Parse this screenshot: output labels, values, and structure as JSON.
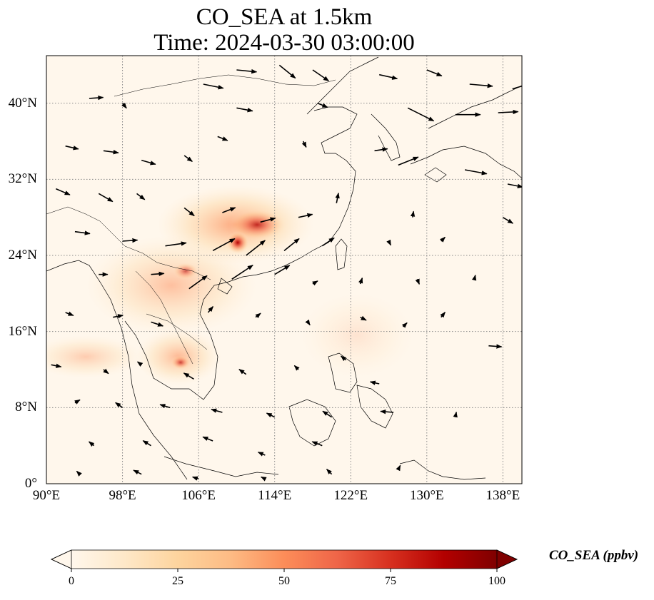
{
  "title": {
    "line1": "CO_SEA at 1.5km",
    "line2": "Time: 2024-03-30 03:00:00"
  },
  "map": {
    "extent": {
      "lon": [
        90,
        140
      ],
      "lat": [
        0,
        45
      ]
    },
    "lon_ticks": [
      {
        "value": 90,
        "label": "90°E"
      },
      {
        "value": 98,
        "label": "98°E"
      },
      {
        "value": 106,
        "label": "106°E"
      },
      {
        "value": 114,
        "label": "114°E"
      },
      {
        "value": 122,
        "label": "122°E"
      },
      {
        "value": 130,
        "label": "130°E"
      },
      {
        "value": 138,
        "label": "138°E"
      }
    ],
    "lat_ticks": [
      {
        "value": 0,
        "label": "0°"
      },
      {
        "value": 8,
        "label": "8°N"
      },
      {
        "value": 16,
        "label": "16°N"
      },
      {
        "value": 24,
        "label": "24°N"
      },
      {
        "value": 32,
        "label": "32°N"
      },
      {
        "value": 40,
        "label": "40°N"
      }
    ],
    "gridlines": "dotted",
    "features": [
      "coastlines",
      "country-borders",
      "wind-vectors",
      "co-concentration-field"
    ]
  },
  "colorbar": {
    "label": "CO_SEA (ppbv)",
    "min": 0,
    "max": 100,
    "extend": "both",
    "colormap": "OrRd",
    "ticks": [
      {
        "value": 0,
        "label": "0"
      },
      {
        "value": 25,
        "label": "25"
      },
      {
        "value": 50,
        "label": "50"
      },
      {
        "value": 75,
        "label": "75"
      },
      {
        "value": 100,
        "label": "100"
      }
    ],
    "colors": [
      "#fff7ec",
      "#fee8c8",
      "#fdd49e",
      "#fdbb84",
      "#fc8d59",
      "#ef6548",
      "#d7301f",
      "#b30000",
      "#7f0000"
    ]
  },
  "concentration_hotspots": [
    {
      "lon": 111.5,
      "lat": 27.5,
      "value": 45
    },
    {
      "lon": 110.0,
      "lat": 25.5,
      "value": 90
    },
    {
      "lon": 104.5,
      "lat": 22.0,
      "value": 30
    },
    {
      "lon": 103.5,
      "lat": 12.5,
      "value": 35
    },
    {
      "lon": 106.0,
      "lat": 18.0,
      "value": 18
    },
    {
      "lon": 98.0,
      "lat": 13.5,
      "value": 12
    },
    {
      "lon": 94.0,
      "lat": 13.5,
      "value": 10
    }
  ],
  "wind_vectors": [
    {
      "lon": 94.5,
      "lat": 40.5,
      "u": 1.4,
      "v": 0.1
    },
    {
      "lon": 98.0,
      "lat": 40.0,
      "u": 0.4,
      "v": -0.5
    },
    {
      "lon": 106.5,
      "lat": 42.0,
      "u": 2.0,
      "v": -0.4
    },
    {
      "lon": 110.0,
      "lat": 43.5,
      "u": 2.0,
      "v": -0.2
    },
    {
      "lon": 114.5,
      "lat": 44.0,
      "u": 1.6,
      "v": -1.3
    },
    {
      "lon": 118.0,
      "lat": 43.5,
      "u": 1.6,
      "v": -1.1
    },
    {
      "lon": 125.0,
      "lat": 43.0,
      "u": 1.8,
      "v": -0.4
    },
    {
      "lon": 130.0,
      "lat": 43.5,
      "u": 1.5,
      "v": -0.6
    },
    {
      "lon": 134.5,
      "lat": 42.0,
      "u": 2.3,
      "v": -0.2
    },
    {
      "lon": 139.0,
      "lat": 41.5,
      "u": 2.0,
      "v": 0.6
    },
    {
      "lon": 110.0,
      "lat": 39.5,
      "u": 1.6,
      "v": -0.3
    },
    {
      "lon": 118.5,
      "lat": 40.0,
      "u": 1.0,
      "v": -0.4
    },
    {
      "lon": 128.0,
      "lat": 39.5,
      "u": 2.6,
      "v": -1.3
    },
    {
      "lon": 133.0,
      "lat": 38.8,
      "u": 2.5,
      "v": 0.0
    },
    {
      "lon": 137.5,
      "lat": 39.0,
      "u": 2.0,
      "v": 0.1
    },
    {
      "lon": 92.0,
      "lat": 35.5,
      "u": 1.3,
      "v": -0.3
    },
    {
      "lon": 96.0,
      "lat": 35.0,
      "u": 1.5,
      "v": -0.2
    },
    {
      "lon": 100.0,
      "lat": 34.0,
      "u": 1.4,
      "v": -0.4
    },
    {
      "lon": 104.5,
      "lat": 34.5,
      "u": 0.8,
      "v": -0.6
    },
    {
      "lon": 108.0,
      "lat": 36.5,
      "u": 1.0,
      "v": -0.4
    },
    {
      "lon": 117.0,
      "lat": 36.0,
      "u": 0.3,
      "v": -0.6
    },
    {
      "lon": 124.5,
      "lat": 35.0,
      "u": 1.3,
      "v": 0.2
    },
    {
      "lon": 127.0,
      "lat": 33.5,
      "u": 2.0,
      "v": 0.8
    },
    {
      "lon": 134.0,
      "lat": 33.0,
      "u": 2.2,
      "v": -0.4
    },
    {
      "lon": 138.5,
      "lat": 31.5,
      "u": 1.5,
      "v": -0.3
    },
    {
      "lon": 91.0,
      "lat": 31.0,
      "u": 1.4,
      "v": -0.6
    },
    {
      "lon": 95.5,
      "lat": 30.5,
      "u": 1.4,
      "v": -0.8
    },
    {
      "lon": 99.5,
      "lat": 30.5,
      "u": 0.8,
      "v": -0.6
    },
    {
      "lon": 104.5,
      "lat": 29.0,
      "u": 1.0,
      "v": -0.8
    },
    {
      "lon": 108.5,
      "lat": 28.5,
      "u": 1.3,
      "v": 0.5
    },
    {
      "lon": 112.5,
      "lat": 27.5,
      "u": 1.5,
      "v": 0.4
    },
    {
      "lon": 116.5,
      "lat": 28.0,
      "u": 1.4,
      "v": 0.3
    },
    {
      "lon": 120.5,
      "lat": 29.5,
      "u": 0.2,
      "v": 1.0
    },
    {
      "lon": 128.5,
      "lat": 28.0,
      "u": 0.1,
      "v": 0.6
    },
    {
      "lon": 138.0,
      "lat": 28.0,
      "u": 1.0,
      "v": -0.6
    },
    {
      "lon": 93.0,
      "lat": 26.5,
      "u": 1.5,
      "v": -0.2
    },
    {
      "lon": 98.0,
      "lat": 25.5,
      "u": 1.5,
      "v": 0.1
    },
    {
      "lon": 102.5,
      "lat": 25.0,
      "u": 2.1,
      "v": 0.3
    },
    {
      "lon": 107.5,
      "lat": 24.5,
      "u": 2.2,
      "v": 1.2
    },
    {
      "lon": 111.0,
      "lat": 24.0,
      "u": 1.9,
      "v": 1.5
    },
    {
      "lon": 115.0,
      "lat": 24.5,
      "u": 1.5,
      "v": 1.2
    },
    {
      "lon": 119.0,
      "lat": 25.0,
      "u": 1.2,
      "v": 0.8
    },
    {
      "lon": 126.0,
      "lat": 25.5,
      "u": 0.2,
      "v": -0.4
    },
    {
      "lon": 131.5,
      "lat": 25.5,
      "u": 0.4,
      "v": 0.4
    },
    {
      "lon": 95.5,
      "lat": 22.0,
      "u": 0.9,
      "v": 0.0
    },
    {
      "lon": 101.0,
      "lat": 22.0,
      "u": 1.3,
      "v": 0.1
    },
    {
      "lon": 105.0,
      "lat": 20.5,
      "u": 1.8,
      "v": 1.3
    },
    {
      "lon": 109.5,
      "lat": 21.5,
      "u": 2.1,
      "v": 1.4
    },
    {
      "lon": 114.0,
      "lat": 22.0,
      "u": 1.5,
      "v": 0.9
    },
    {
      "lon": 118.0,
      "lat": 21.0,
      "u": 0.5,
      "v": 0.3
    },
    {
      "lon": 123.0,
      "lat": 21.0,
      "u": 0.2,
      "v": 0.6
    },
    {
      "lon": 129.0,
      "lat": 21.5,
      "u": 0.2,
      "v": -0.5
    },
    {
      "lon": 135.0,
      "lat": 21.5,
      "u": 0.1,
      "v": 0.4
    },
    {
      "lon": 92.0,
      "lat": 18.0,
      "u": 0.8,
      "v": -0.3
    },
    {
      "lon": 97.0,
      "lat": 17.5,
      "u": 1.0,
      "v": 0.2
    },
    {
      "lon": 101.0,
      "lat": 17.0,
      "u": 1.2,
      "v": -0.4
    },
    {
      "lon": 107.0,
      "lat": 18.0,
      "u": 0.5,
      "v": 0.6
    },
    {
      "lon": 112.0,
      "lat": 17.5,
      "u": 0.5,
      "v": 0.4
    },
    {
      "lon": 117.5,
      "lat": 17.0,
      "u": 0.2,
      "v": -0.3
    },
    {
      "lon": 123.0,
      "lat": 17.5,
      "u": 0.6,
      "v": -0.3
    },
    {
      "lon": 127.5,
      "lat": 16.5,
      "u": 0.4,
      "v": 0.4
    },
    {
      "lon": 131.5,
      "lat": 17.5,
      "u": 0.4,
      "v": 0.5
    },
    {
      "lon": 136.5,
      "lat": 14.5,
      "u": 1.3,
      "v": -0.1
    },
    {
      "lon": 90.5,
      "lat": 12.5,
      "u": 1.0,
      "v": -0.2
    },
    {
      "lon": 96.0,
      "lat": 12.0,
      "u": 0.5,
      "v": -0.4
    },
    {
      "lon": 100.0,
      "lat": 12.5,
      "u": -0.4,
      "v": 0.3
    },
    {
      "lon": 105.5,
      "lat": 11.0,
      "u": -1.0,
      "v": 0.6
    },
    {
      "lon": 111.0,
      "lat": 11.5,
      "u": -0.7,
      "v": 0.5
    },
    {
      "lon": 116.5,
      "lat": 12.0,
      "u": -0.4,
      "v": 0.4
    },
    {
      "lon": 121.5,
      "lat": 13.0,
      "u": -0.5,
      "v": 0.4
    },
    {
      "lon": 125.0,
      "lat": 10.5,
      "u": -0.9,
      "v": 0.2
    },
    {
      "lon": 93.0,
      "lat": 8.5,
      "u": 0.5,
      "v": 0.3
    },
    {
      "lon": 98.0,
      "lat": 8.0,
      "u": -0.7,
      "v": 0.5
    },
    {
      "lon": 103.0,
      "lat": 8.0,
      "u": -1.0,
      "v": 0.3
    },
    {
      "lon": 108.5,
      "lat": 7.5,
      "u": -1.1,
      "v": 0.3
    },
    {
      "lon": 114.0,
      "lat": 7.0,
      "u": -0.8,
      "v": 0.4
    },
    {
      "lon": 120.0,
      "lat": 7.0,
      "u": -0.9,
      "v": 0.6
    },
    {
      "lon": 126.5,
      "lat": 7.5,
      "u": -1.3,
      "v": 0.1
    },
    {
      "lon": 133.0,
      "lat": 7.0,
      "u": 0.1,
      "v": 0.5
    },
    {
      "lon": 95.0,
      "lat": 4.0,
      "u": -0.5,
      "v": 0.4
    },
    {
      "lon": 101.0,
      "lat": 4.0,
      "u": -0.8,
      "v": 0.5
    },
    {
      "lon": 107.5,
      "lat": 4.5,
      "u": -1.0,
      "v": 0.4
    },
    {
      "lon": 113.0,
      "lat": 3.0,
      "u": -0.7,
      "v": 0.3
    },
    {
      "lon": 119.0,
      "lat": 4.0,
      "u": -1.0,
      "v": 0.4
    },
    {
      "lon": 93.5,
      "lat": 1.0,
      "u": -0.3,
      "v": 0.3
    },
    {
      "lon": 100.0,
      "lat": 1.0,
      "u": -0.8,
      "v": 0.4
    },
    {
      "lon": 106.0,
      "lat": 0.5,
      "u": -0.6,
      "v": 0.2
    },
    {
      "lon": 113.0,
      "lat": 0.5,
      "u": -0.4,
      "v": 0.2
    },
    {
      "lon": 120.0,
      "lat": 1.0,
      "u": -0.5,
      "v": 0.5
    },
    {
      "lon": 127.0,
      "lat": 1.5,
      "u": 0.2,
      "v": 0.4
    }
  ]
}
